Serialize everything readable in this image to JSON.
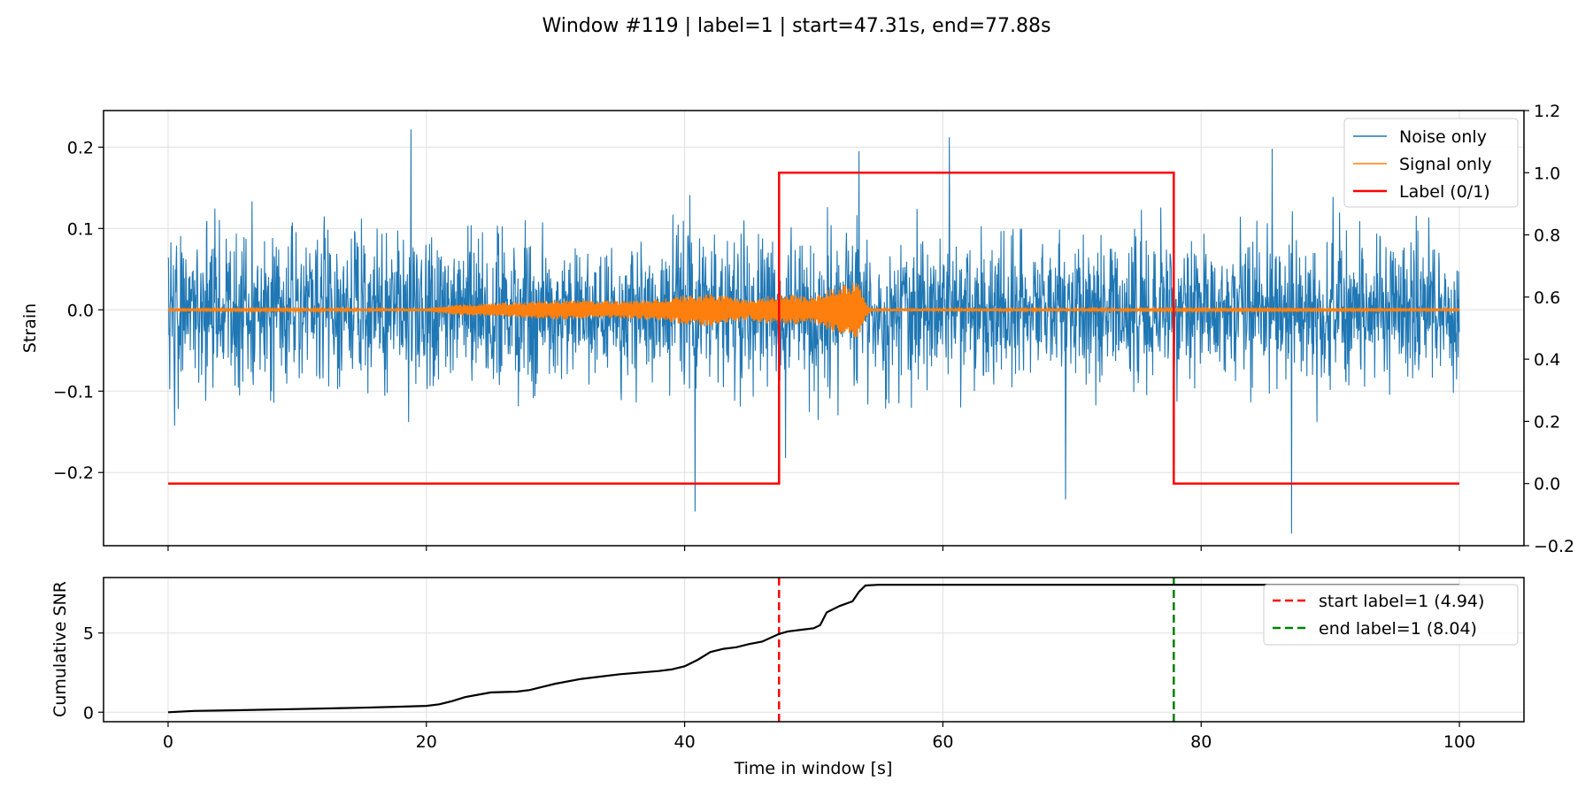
{
  "title": "Window #119 | label=1 | start=47.31s, end=77.88s",
  "chart_data": [
    {
      "type": "line",
      "panel": "top",
      "xlim": [
        -5,
        105
      ],
      "ylim": [
        -0.29,
        0.245
      ],
      "y2lim": [
        -0.2,
        1.2
      ],
      "xticks": [
        0,
        20,
        40,
        60,
        80,
        100
      ],
      "yticks": [
        -0.2,
        -0.1,
        0.0,
        0.1,
        0.2
      ],
      "ytick_labels": [
        "−0.2",
        "−0.1",
        "0.0",
        "0.1",
        "0.2"
      ],
      "y2ticks": [
        -0.2,
        0.0,
        0.2,
        0.4,
        0.6,
        0.8,
        1.0,
        1.2
      ],
      "y2tick_labels": [
        "−0.2",
        "0.0",
        "0.2",
        "0.4",
        "0.6",
        "0.8",
        "1.0",
        "1.2"
      ],
      "ylabel": "Strain",
      "grid": true,
      "legend_position": "top-right",
      "series": [
        {
          "name": "Noise only",
          "color": "#1f77b4",
          "axis": "left",
          "description_envelope": {
            "x": [
              0,
              100
            ],
            "band_typical": [
              -0.075,
              0.075
            ],
            "peaks_y": [
              {
                "x": 18.8,
                "y": 0.222
              },
              {
                "x": 40.8,
                "y": -0.248
              },
              {
                "x": 47.8,
                "y": -0.182
              },
              {
                "x": 53.5,
                "y": 0.195
              },
              {
                "x": 60.5,
                "y": 0.212
              },
              {
                "x": 69.5,
                "y": -0.233
              },
              {
                "x": 87.0,
                "y": -0.275
              },
              {
                "x": 85.5,
                "y": 0.198
              }
            ]
          }
        },
        {
          "name": "Signal only",
          "color": "#ff7f0e",
          "axis": "left",
          "envelope": {
            "x": [
              0,
              20,
              22,
              25,
              30,
              35,
              38,
              40,
              42,
              44,
              45,
              46,
              48,
              50,
              51,
              52,
              53,
              53.5,
              54,
              54.5,
              100
            ],
            "amp": [
              0.001,
              0.002,
              0.006,
              0.008,
              0.012,
              0.011,
              0.013,
              0.018,
              0.02,
              0.015,
              0.012,
              0.017,
              0.019,
              0.016,
              0.025,
              0.031,
              0.035,
              0.038,
              0.01,
              0.002,
              0.001
            ]
          }
        },
        {
          "name": "Label (0/1)",
          "color": "#ff0000",
          "axis": "right",
          "x": [
            0,
            47.31,
            47.31,
            77.88,
            77.88,
            100
          ],
          "y": [
            0,
            0,
            1,
            1,
            0,
            0
          ]
        }
      ]
    },
    {
      "type": "line",
      "panel": "bottom",
      "xlim": [
        -5,
        105
      ],
      "ylim": [
        -0.6,
        8.5
      ],
      "xticks": [
        0,
        20,
        40,
        60,
        80,
        100
      ],
      "yticks": [
        0,
        5
      ],
      "xlabel": "Time in window [s]",
      "ylabel": "Cumulative SNR",
      "grid": true,
      "legend_position": "top-right",
      "series": [
        {
          "name": "Cumulative SNR",
          "color": "#000000",
          "x": [
            0,
            2,
            5,
            10,
            15,
            18,
            20,
            21,
            22,
            23,
            24,
            25,
            27,
            28,
            29,
            30,
            32,
            35,
            38,
            39,
            40,
            41,
            42,
            43,
            44,
            45,
            46,
            47.31,
            48,
            49,
            50,
            50.5,
            51,
            52,
            53,
            53.5,
            54,
            55,
            60,
            70,
            80,
            90,
            100
          ],
          "y": [
            0.0,
            0.08,
            0.12,
            0.2,
            0.28,
            0.35,
            0.4,
            0.5,
            0.7,
            0.95,
            1.1,
            1.25,
            1.3,
            1.4,
            1.6,
            1.8,
            2.1,
            2.4,
            2.6,
            2.7,
            2.9,
            3.3,
            3.8,
            4.0,
            4.1,
            4.3,
            4.45,
            4.94,
            5.1,
            5.2,
            5.3,
            5.5,
            6.3,
            6.7,
            7.0,
            7.6,
            8.0,
            8.04,
            8.04,
            8.04,
            8.04,
            8.04,
            8.04
          ]
        }
      ],
      "vlines": [
        {
          "name": "start label=1 (4.94)",
          "x": 47.31,
          "color": "#ff0000",
          "style": "dashed"
        },
        {
          "name": "end label=1 (8.04)",
          "x": 77.88,
          "color": "#008000",
          "style": "dashed"
        }
      ]
    }
  ]
}
